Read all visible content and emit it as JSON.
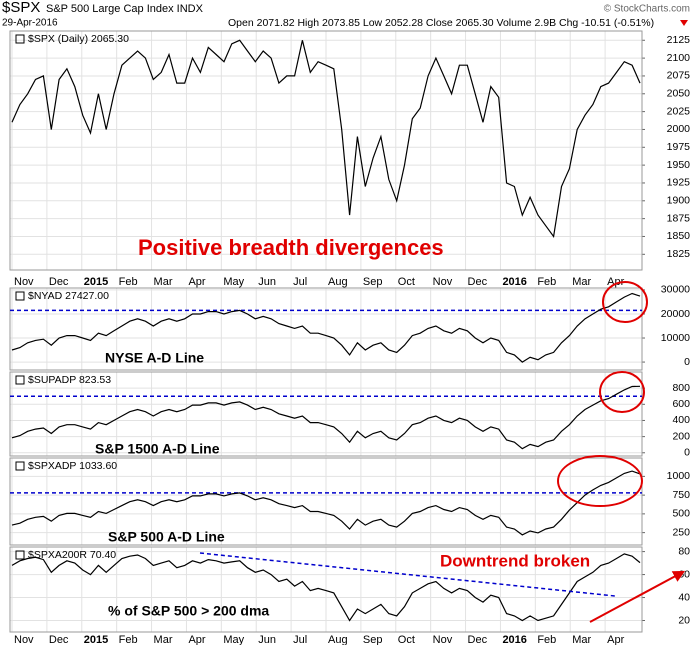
{
  "header": {
    "symbol": "$SPX",
    "name": "S&P 500 Large Cap Index INDX",
    "date": "29-Apr-2016",
    "quote": "Open 2071.82 High 2073.85 Low 2052.28 Close 2065.30 Volume 2.9B Chg -10.51 (-0.51%)",
    "credit": "© StockCharts.com"
  },
  "chart_data": [
    {
      "type": "line",
      "legend": "$SPX (Daily) 2065.30",
      "color": "#000000",
      "grid": true,
      "annotation": "Positive breadth divergences",
      "months": [
        "Nov",
        "Dec",
        "2015",
        "Feb",
        "Mar",
        "Apr",
        "May",
        "Jun",
        "Jul",
        "Aug",
        "Sep",
        "Oct",
        "Nov",
        "Dec",
        "2016",
        "Feb",
        "Mar",
        "Apr"
      ],
      "ylim": [
        1803,
        2138
      ],
      "yticks": [
        1825,
        1850,
        1875,
        1900,
        1925,
        1950,
        1975,
        2000,
        2025,
        2050,
        2075,
        2100,
        2125
      ],
      "values": [
        2010,
        2035,
        2050,
        2070,
        2075,
        2000,
        2070,
        2085,
        2060,
        2020,
        1995,
        2050,
        2000,
        2050,
        2090,
        2100,
        2110,
        2100,
        2070,
        2080,
        2105,
        2065,
        2065,
        2100,
        2080,
        2115,
        2105,
        2095,
        2120,
        2125,
        2110,
        2095,
        2110,
        2100,
        2065,
        2075,
        2075,
        2125,
        2080,
        2095,
        2090,
        2085,
        2000,
        1880,
        1990,
        1920,
        1960,
        1990,
        1930,
        1900,
        1950,
        2015,
        2030,
        2075,
        2100,
        2075,
        2050,
        2090,
        2090,
        2050,
        2010,
        2060,
        2045,
        1925,
        1920,
        1880,
        1905,
        1880,
        1865,
        1850,
        1920,
        1945,
        2000,
        2020,
        2035,
        2060,
        2065,
        2080,
        2095,
        2090,
        2065
      ]
    },
    {
      "type": "line",
      "legend": "$NYAD 27427.00",
      "color": "#000000",
      "grid": true,
      "annotation": "NYSE A-D Line",
      "hline": 21500,
      "hline_color": "#0000cc",
      "ylim": [
        -3300,
        30800
      ],
      "yticks": [
        0,
        10000,
        20000,
        30000
      ],
      "values": [
        5000,
        6000,
        8000,
        9000,
        9500,
        7000,
        10000,
        11000,
        11000,
        10000,
        9000,
        12000,
        11000,
        13000,
        15000,
        17000,
        18000,
        17000,
        15000,
        17000,
        18000,
        17000,
        18000,
        20000,
        20000,
        21000,
        21000,
        20000,
        21000,
        21500,
        20000,
        18000,
        19000,
        18000,
        16000,
        15000,
        14000,
        15000,
        12000,
        12000,
        11000,
        10000,
        7000,
        3000,
        8000,
        5000,
        7000,
        8000,
        5000,
        4000,
        7000,
        11000,
        12000,
        14000,
        15000,
        13000,
        12000,
        14000,
        13000,
        10000,
        8000,
        10000,
        9000,
        4000,
        3000,
        0,
        2000,
        1000,
        3000,
        4000,
        8000,
        11000,
        15000,
        18000,
        20000,
        22000,
        23000,
        25000,
        27000,
        28500,
        27427
      ]
    },
    {
      "type": "line",
      "legend": "$SUPADP 823.53",
      "color": "#000000",
      "grid": true,
      "annotation": "S&P 1500 A-D Line",
      "hline": 700,
      "hline_color": "#0000cc",
      "ylim": [
        -40,
        1000
      ],
      "yticks": [
        0,
        200,
        400,
        600,
        800
      ],
      "values": [
        185,
        212,
        266,
        293,
        307,
        239,
        320,
        347,
        347,
        320,
        293,
        374,
        347,
        401,
        455,
        509,
        536,
        509,
        455,
        509,
        536,
        509,
        536,
        590,
        590,
        617,
        617,
        590,
        617,
        630,
        590,
        536,
        563,
        536,
        482,
        455,
        428,
        455,
        374,
        374,
        347,
        320,
        239,
        131,
        266,
        185,
        239,
        266,
        185,
        158,
        239,
        347,
        374,
        428,
        455,
        401,
        374,
        428,
        401,
        320,
        266,
        320,
        293,
        158,
        131,
        50,
        104,
        77,
        131,
        158,
        266,
        347,
        455,
        536,
        590,
        644,
        671,
        725,
        779,
        820,
        823.53
      ]
    },
    {
      "type": "line",
      "legend": "$SPXADP 1033.60",
      "color": "#000000",
      "grid": true,
      "annotation": "S&P 500 A-D Line",
      "hline": 780,
      "hline_color": "#0000cc",
      "ylim": [
        85,
        1245
      ],
      "yticks": [
        250,
        500,
        750,
        1000
      ],
      "values": [
        350,
        376,
        428,
        454,
        467,
        402,
        480,
        506,
        506,
        480,
        454,
        532,
        506,
        558,
        610,
        662,
        688,
        662,
        610,
        662,
        688,
        662,
        688,
        740,
        740,
        766,
        766,
        740,
        766,
        779,
        740,
        688,
        714,
        688,
        636,
        610,
        584,
        610,
        532,
        532,
        506,
        480,
        402,
        298,
        428,
        350,
        402,
        428,
        350,
        324,
        402,
        506,
        532,
        584,
        610,
        558,
        532,
        584,
        558,
        480,
        428,
        480,
        454,
        324,
        298,
        220,
        272,
        246,
        298,
        324,
        428,
        550,
        650,
        750,
        820,
        880,
        920,
        980,
        1040,
        1070,
        1033.6
      ]
    },
    {
      "type": "line",
      "legend": "$SPXA200R 70.40",
      "color": "#000000",
      "grid": true,
      "annotation": "% of S&P 500 > 200 dma",
      "annotation2": "Downtrend broken",
      "months": [
        "Nov",
        "Dec",
        "2015",
        "Feb",
        "Mar",
        "Apr",
        "May",
        "Jun",
        "Jul",
        "Aug",
        "Sep",
        "Oct",
        "Nov",
        "Dec",
        "2016",
        "Feb",
        "Mar",
        "Apr"
      ],
      "ylim": [
        10,
        84
      ],
      "yticks": [
        20,
        40,
        60,
        80
      ],
      "values": [
        68,
        72,
        74,
        75,
        73,
        62,
        68,
        72,
        70,
        64,
        60,
        68,
        62,
        68,
        74,
        76,
        77,
        74,
        68,
        70,
        72,
        66,
        68,
        72,
        70,
        73,
        72,
        70,
        71,
        72,
        66,
        62,
        64,
        60,
        54,
        56,
        50,
        54,
        46,
        48,
        46,
        44,
        32,
        20,
        30,
        26,
        30,
        34,
        26,
        24,
        32,
        44,
        48,
        52,
        54,
        48,
        44,
        48,
        46,
        40,
        36,
        42,
        40,
        26,
        24,
        20,
        24,
        20,
        22,
        24,
        34,
        44,
        54,
        58,
        62,
        68,
        70,
        74,
        78,
        76,
        70.4
      ]
    }
  ]
}
